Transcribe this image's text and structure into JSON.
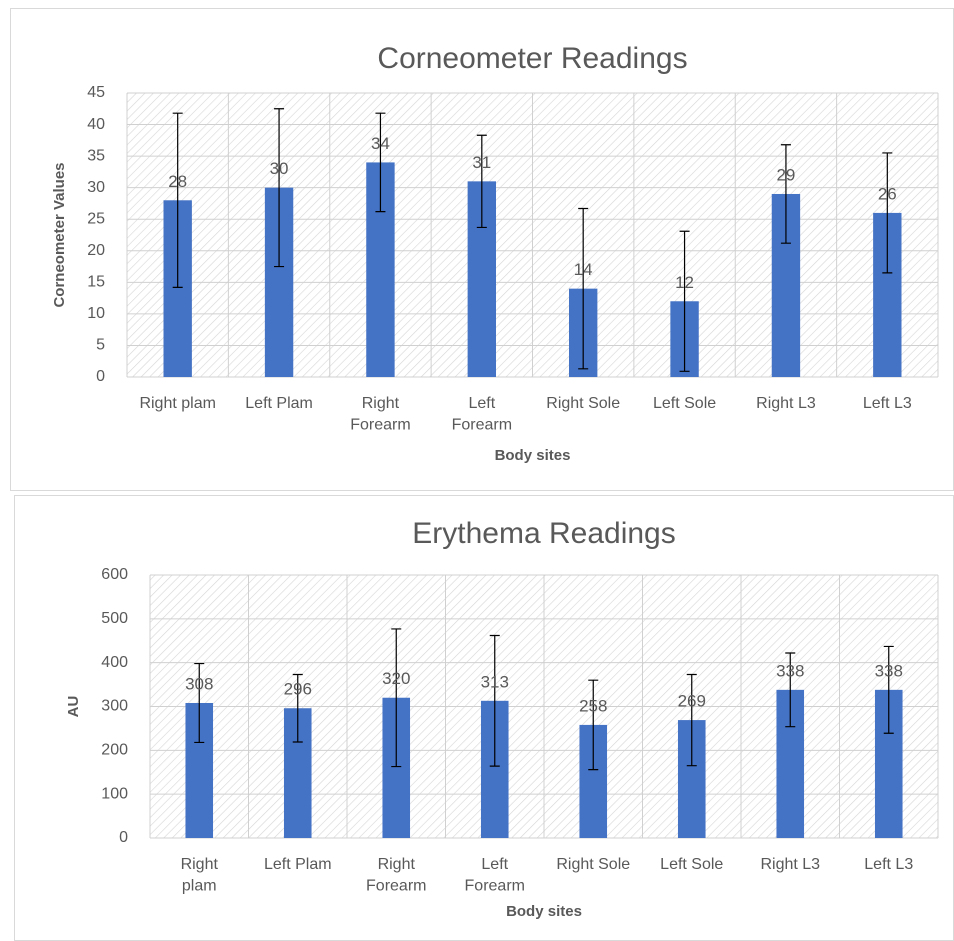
{
  "chart_data": [
    {
      "type": "bar",
      "title": "Corneometer Readings",
      "x_label": "Body sites",
      "y_label": "Corneometer Values",
      "categories": [
        "Right plam",
        "Left Plam",
        "Right Forearm",
        "Left Forearm",
        "Right Sole",
        "Left Sole",
        "Right L3",
        "Left L3"
      ],
      "values": [
        28,
        30,
        34,
        31,
        14,
        12,
        29,
        26
      ],
      "errors": [
        13.8,
        12.5,
        7.8,
        7.3,
        12.7,
        11.1,
        7.8,
        9.5
      ],
      "color": "#4472c4",
      "ylim": [
        0,
        45
      ],
      "yticks": [
        0,
        5,
        10,
        15,
        20,
        25,
        30,
        35,
        40,
        45
      ],
      "grid": true
    },
    {
      "type": "bar",
      "title": "Erythema Readings",
      "x_label": "Body sites",
      "y_label": "AU",
      "categories": [
        "Right plam",
        "Left Plam",
        "Right Forearm",
        "Left Forearm",
        "Right Sole",
        "Left Sole",
        "Right L3",
        "Left L3"
      ],
      "values": [
        308,
        296,
        320,
        313,
        258,
        269,
        338,
        338
      ],
      "errors": [
        90,
        77,
        157,
        149,
        102,
        104,
        84,
        99
      ],
      "color": "#4472c4",
      "ylim": [
        0,
        600
      ],
      "yticks": [
        0,
        100,
        200,
        300,
        400,
        500,
        600
      ],
      "grid": true
    }
  ]
}
